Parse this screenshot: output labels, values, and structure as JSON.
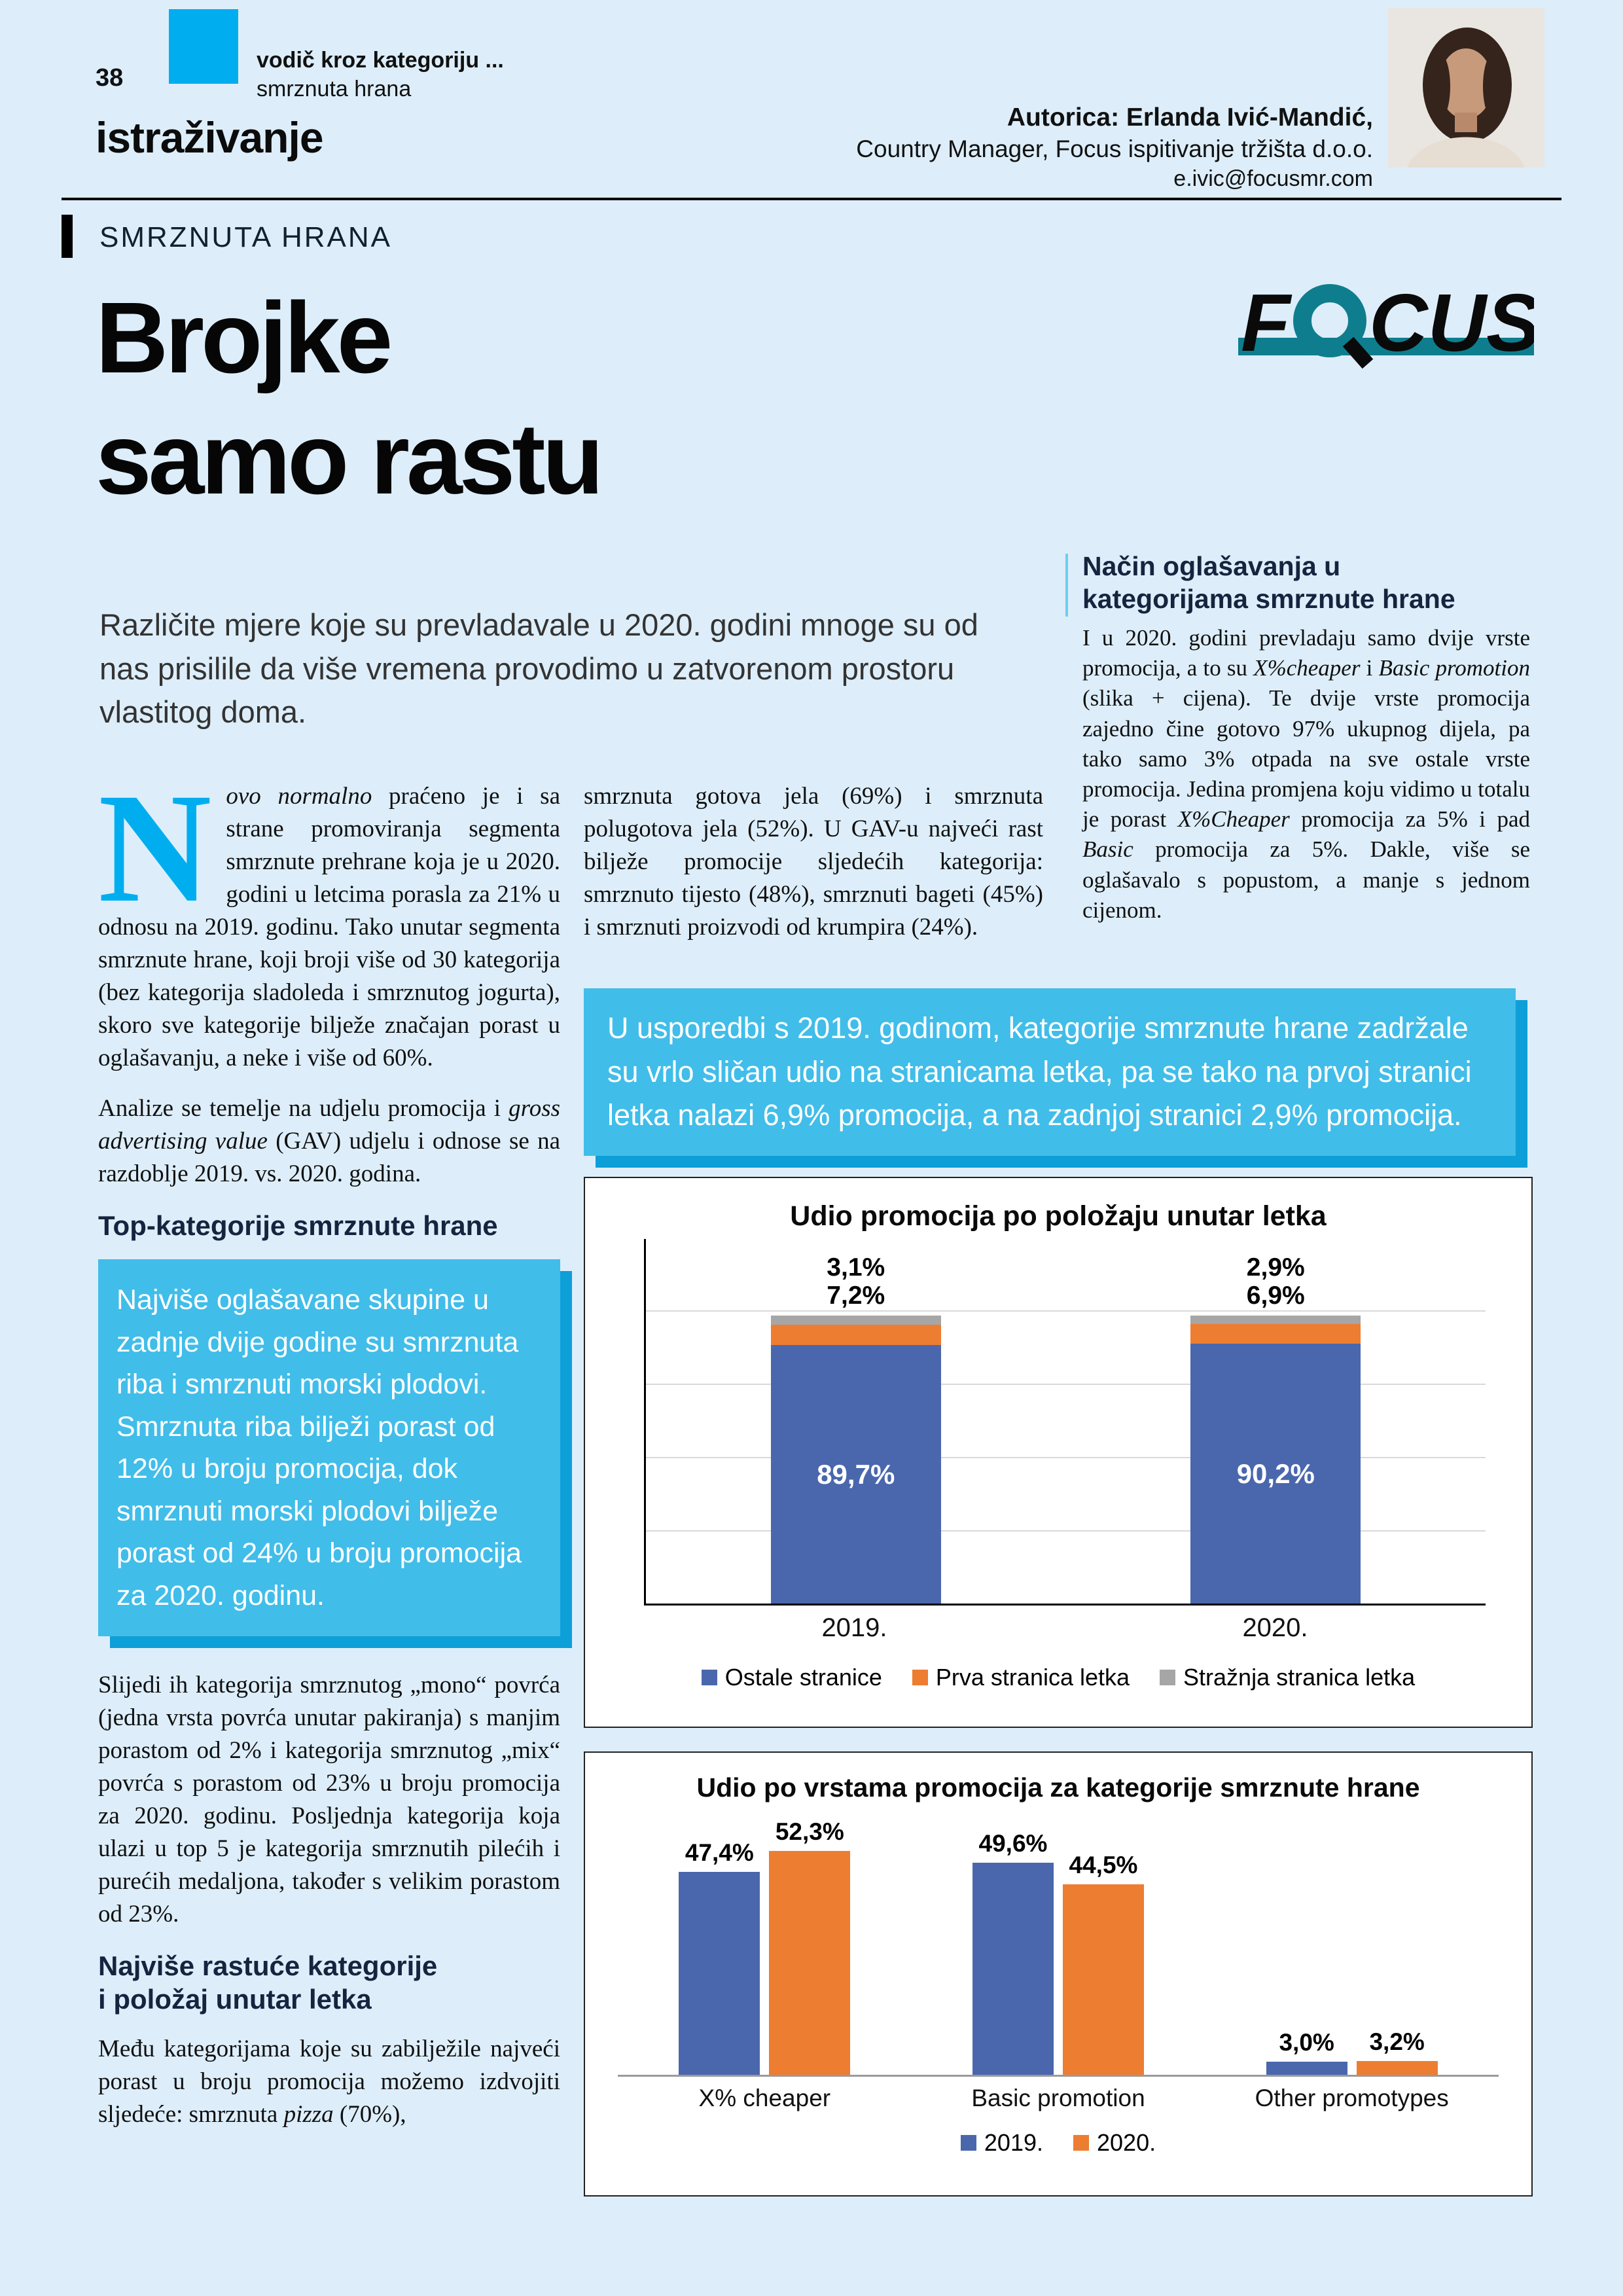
{
  "page": {
    "number": "38",
    "masthead": {
      "kicker_bold": "vodič kroz kategoriju ...",
      "kicker_light": "smrznuta hrana",
      "section": "istraživanje"
    },
    "author": {
      "line1": "Autorica: Erlanda Ivić-Mandić,",
      "line2": "Country Manager, Focus ispitivanje tržišta d.o.o.",
      "email": "e.ivic@focusmr.com"
    }
  },
  "article": {
    "category_label": "SMRZNUTA HRANA",
    "title_line1": "Brojke",
    "title_line2": "samo rastu",
    "logo": {
      "f": "F",
      "cus": "CUS"
    },
    "lead": "Različite mjere koje su prevladavale u 2020. godini mnoge su od nas prisilile da više vremena provodimo u zatvorenom prostoru vlastitog doma."
  },
  "left_col": {
    "dropcap": "N",
    "p1": [
      {
        "t": "ovo normalno",
        "i": true
      },
      {
        "t": " praćeno je i sa strane promoviranja segmenta smrznute prehrane koja je u 2020. godini u letcima porasla za 21% u odnosu na 2019. godinu. Tako unutar segmenta smrznute hrane, koji broji više od 30 kategorija (bez kategorija sladoleda i smrznutog jogurta), skoro sve kategorije bilježe značajan porast u oglašavanju, a neke i više od 60%."
      }
    ],
    "p2": [
      {
        "t": "Analize se temelje na udjelu promocija i "
      },
      {
        "t": "gross advertising value",
        "i": true
      },
      {
        "t": " (GAV) udjelu i odnose se na razdoblje 2019. vs. 2020. godina."
      }
    ],
    "subhead1": "Top-kategorije smrznute hrane",
    "highlight": "Najviše oglašavane skupine u zadnje dvije godine su smrznuta riba i smrznuti morski plodovi. Smrznuta riba bilježi porast od 12% u broju promocija, dok smrznuti morski plodovi bilježe porast od 24% u broju promocija za 2020. godinu.",
    "p3": "Slijedi ih kategorija smrznutog „mono“ povrća (jedna vrsta povrća unutar pakiranja) s manjim porastom od 2% i kategorija smrznutog „mix“ povrća s porastom od 23% u broju promocija za 2020. godinu. Posljednja kategorija koja ulazi u top 5 je kategorija smrznutih pilećih i purećih medaljona, također s velikim porastom od 23%.",
    "subhead2_line1": "Najviše rastuće kategorije",
    "subhead2_line2": "i položaj unutar letka",
    "p4": [
      {
        "t": "Među kategorijama koje su zabilježile najveći porast u broju promocija možemo izdvojiti sljedeće: smrznuta "
      },
      {
        "t": "pizza",
        "i": true
      },
      {
        "t": " (70%),"
      }
    ]
  },
  "middle_col": {
    "p1": "smrznuta gotova jela (69%) i smrznuta polugotova jela (52%). U GAV-u najveći rast bilježe promocije sljedećih kategorija: smrznuto tijesto (48%), smrznuti bageti (45%) i smrznuti proizvodi od krumpira (24%)."
  },
  "right_col": {
    "heading_line1": "Način oglašavanja u",
    "heading_line2": "kategorijama smrznute hrane",
    "body": [
      {
        "t": "I u 2020. godini prevladaju samo dvije vrste promocija, a to su "
      },
      {
        "t": "X%cheaper",
        "i": true
      },
      {
        "t": " i "
      },
      {
        "t": "Basic promotion",
        "i": true
      },
      {
        "t": " (slika + cijena). Te dvije vrste promocija zajedno čine gotovo 97% ukupnog dijela, pa tako samo 3% otpada na sve ostale vrste promocija. Jedina promjena koju vidimo u totalu je porast "
      },
      {
        "t": "X%Cheaper",
        "i": true
      },
      {
        "t": " promocija za 5% i pad "
      },
      {
        "t": "Basic",
        "i": true
      },
      {
        "t": " promocija za 5%. Dakle, više se oglašavalo s popustom, a manje s jednom cijenom."
      }
    ]
  },
  "wide_highlight": "U usporedbi s 2019. godinom, kategorije smrznute hrane zadržale su vrlo sličan udio na stranicama letka, pa se tako na prvoj stranici letka nalazi 6,9% promocija, a na zadnjoj stranici 2,9% promocija.",
  "colors": {
    "accent_cyan": "#00aeef",
    "highlight_box": "#41bde9",
    "highlight_shadow": "#0d9fd8",
    "navy_heading": "#16243f",
    "logo_teal": "#0e7e8e",
    "page_background": "#ddeefa",
    "chart_blue": "#4a67ad",
    "chart_orange": "#ed7d31",
    "chart_gray": "#a6a6a6"
  },
  "chart_data": [
    {
      "type": "bar",
      "variant": "stacked-100",
      "title": "Udio promocija po položaju unutar letka",
      "categories": [
        "2019.",
        "2020."
      ],
      "series": [
        {
          "name": "Ostale stranice",
          "color": "#4a67ad",
          "values": [
            89.7,
            90.2
          ],
          "labels": [
            "89,7%",
            "90,2%"
          ]
        },
        {
          "name": "Prva stranica letka",
          "color": "#ed7d31",
          "values": [
            7.2,
            6.9
          ],
          "labels": [
            "7,2%",
            "6,9%"
          ]
        },
        {
          "name": "Stražnja stranica letka",
          "color": "#a6a6a6",
          "values": [
            3.1,
            2.9
          ],
          "labels": [
            "3,1%",
            "2,9%"
          ]
        }
      ],
      "ylim": [
        0,
        100
      ],
      "grid": true,
      "legend_position": "bottom"
    },
    {
      "type": "bar",
      "variant": "grouped",
      "title": "Udio po vrstama promocija za kategorije smrznute hrane",
      "categories": [
        "X% cheaper",
        "Basic promotion",
        "Other promotypes"
      ],
      "series": [
        {
          "name": "2019.",
          "color": "#4a67ad",
          "values": [
            47.4,
            49.6,
            3.0
          ],
          "labels": [
            "47,4%",
            "49,6%",
            "3,0%"
          ]
        },
        {
          "name": "2020.",
          "color": "#ed7d31",
          "values": [
            52.3,
            44.5,
            3.2
          ],
          "labels": [
            "52,3%",
            "44,5%",
            "3,2%"
          ]
        }
      ],
      "ylim": [
        0,
        60
      ],
      "grid": false,
      "legend_position": "bottom"
    }
  ]
}
